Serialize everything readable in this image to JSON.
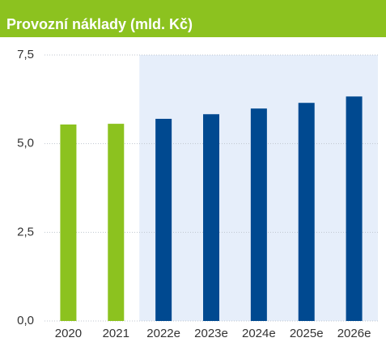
{
  "chart_data": {
    "type": "bar",
    "title": "Provozní náklady (mld. Kč)",
    "categories": [
      "2020",
      "2021",
      "2022e",
      "2023e",
      "2024e",
      "2025e",
      "2026e"
    ],
    "values": [
      5.54,
      5.56,
      5.7,
      5.83,
      5.99,
      6.15,
      6.33
    ],
    "colors": [
      "#8cc21f",
      "#8cc21f",
      "#004990",
      "#004990",
      "#004990",
      "#004990",
      "#004990"
    ],
    "title_color": "#8cc21f",
    "forecast_shading": {
      "from_category": 2,
      "color": "#e6eefa"
    },
    "ylim": [
      0,
      7.5
    ],
    "yticks": [
      {
        "value": 0,
        "label": "0,0"
      },
      {
        "value": 2.5,
        "label": "2,5"
      },
      {
        "value": 5,
        "label": "5,0"
      },
      {
        "value": 7.5,
        "label": "7,5"
      }
    ],
    "grid": true
  }
}
